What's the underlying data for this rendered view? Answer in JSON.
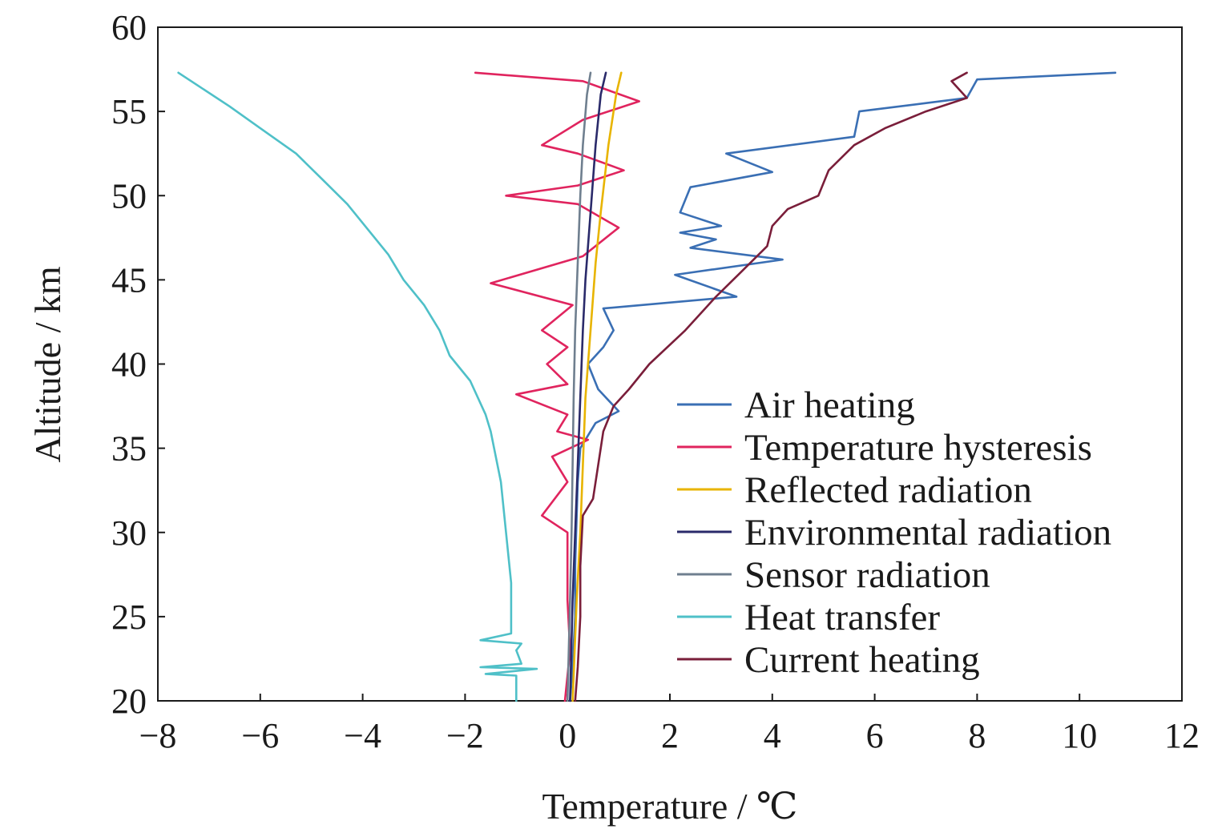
{
  "chart_data": {
    "type": "line",
    "xlabel": "Temperature / ℃",
    "ylabel": "Altitude / km",
    "xlim": [
      -8,
      12
    ],
    "ylim": [
      20,
      60
    ],
    "xticks": [
      -8,
      -6,
      -4,
      -2,
      0,
      2,
      4,
      6,
      8,
      10,
      12
    ],
    "xtick_labels": [
      "−8",
      "−6",
      "−4",
      "−2",
      "0",
      "2",
      "4",
      "6",
      "8",
      "10",
      "12"
    ],
    "yticks": [
      20,
      25,
      30,
      35,
      40,
      45,
      50,
      55,
      60
    ],
    "ytick_labels": [
      "20",
      "25",
      "30",
      "35",
      "40",
      "45",
      "50",
      "55",
      "60"
    ],
    "grid": false,
    "legend_position": "lower-right",
    "series": [
      {
        "name": "Air heating",
        "color": "#3a6fb4",
        "points": [
          [
            0.05,
            20
          ],
          [
            0.1,
            22
          ],
          [
            0.15,
            25
          ],
          [
            0.15,
            28
          ],
          [
            0.18,
            31
          ],
          [
            0.2,
            33
          ],
          [
            0.25,
            35
          ],
          [
            0.55,
            36.5
          ],
          [
            1.0,
            37.2
          ],
          [
            0.6,
            38.5
          ],
          [
            0.4,
            40
          ],
          [
            0.7,
            41
          ],
          [
            0.9,
            42
          ],
          [
            0.7,
            43.3
          ],
          [
            3.3,
            44
          ],
          [
            2.1,
            45.3
          ],
          [
            4.2,
            46.2
          ],
          [
            2.4,
            46.9
          ],
          [
            2.9,
            47.4
          ],
          [
            2.2,
            47.8
          ],
          [
            3.0,
            48.2
          ],
          [
            2.2,
            49
          ],
          [
            2.4,
            50.5
          ],
          [
            4.0,
            51.4
          ],
          [
            3.1,
            52.5
          ],
          [
            5.6,
            53.5
          ],
          [
            5.7,
            55
          ],
          [
            7.8,
            55.8
          ],
          [
            8.0,
            56.9
          ],
          [
            10.7,
            57.3
          ]
        ]
      },
      {
        "name": "Temperature hysteresis",
        "color": "#e0245e",
        "points": [
          [
            -0.05,
            20
          ],
          [
            0.05,
            23
          ],
          [
            0.0,
            26
          ],
          [
            0.0,
            30
          ],
          [
            -0.5,
            31
          ],
          [
            0.0,
            33
          ],
          [
            -0.3,
            34.5
          ],
          [
            0.4,
            35.5
          ],
          [
            -0.2,
            36
          ],
          [
            0.0,
            37
          ],
          [
            -1.0,
            38.2
          ],
          [
            0.0,
            38.8
          ],
          [
            -0.4,
            40
          ],
          [
            0.0,
            41
          ],
          [
            -0.5,
            42
          ],
          [
            0.1,
            43.5
          ],
          [
            -1.5,
            44.8
          ],
          [
            0.3,
            46.4
          ],
          [
            1.0,
            48.1
          ],
          [
            0.2,
            49.5
          ],
          [
            -1.2,
            50
          ],
          [
            0.2,
            50.6
          ],
          [
            1.1,
            51.5
          ],
          [
            0.2,
            52.5
          ],
          [
            -0.5,
            53
          ],
          [
            0.3,
            54.5
          ],
          [
            1.4,
            55.6
          ],
          [
            0.3,
            56.8
          ],
          [
            -1.8,
            57.3
          ]
        ]
      },
      {
        "name": "Reflected radiation",
        "color": "#e8b400",
        "points": [
          [
            0.1,
            20
          ],
          [
            0.18,
            26
          ],
          [
            0.25,
            30
          ],
          [
            0.3,
            34
          ],
          [
            0.35,
            38
          ],
          [
            0.45,
            42
          ],
          [
            0.55,
            46
          ],
          [
            0.65,
            49
          ],
          [
            0.8,
            53
          ],
          [
            0.95,
            56
          ],
          [
            1.05,
            57.3
          ]
        ]
      },
      {
        "name": "Environmental radiation",
        "color": "#2a2a6a",
        "points": [
          [
            0.05,
            20
          ],
          [
            0.1,
            26
          ],
          [
            0.15,
            30
          ],
          [
            0.2,
            34
          ],
          [
            0.25,
            38
          ],
          [
            0.3,
            42
          ],
          [
            0.35,
            45
          ],
          [
            0.45,
            49
          ],
          [
            0.55,
            53
          ],
          [
            0.65,
            56
          ],
          [
            0.75,
            57.3
          ]
        ]
      },
      {
        "name": "Sensor radiation",
        "color": "#6f7f8f",
        "points": [
          [
            0.0,
            20
          ],
          [
            0.05,
            26
          ],
          [
            0.08,
            30
          ],
          [
            0.1,
            34
          ],
          [
            0.12,
            38
          ],
          [
            0.15,
            42
          ],
          [
            0.2,
            46
          ],
          [
            0.25,
            50
          ],
          [
            0.3,
            53
          ],
          [
            0.38,
            56
          ],
          [
            0.45,
            57.3
          ]
        ]
      },
      {
        "name": "Heat transfer",
        "color": "#4fc0c8",
        "points": [
          [
            -1.0,
            20
          ],
          [
            -1.0,
            21.5
          ],
          [
            -1.6,
            21.6
          ],
          [
            -0.6,
            21.9
          ],
          [
            -1.7,
            22
          ],
          [
            -0.9,
            22.2
          ],
          [
            -1.0,
            23
          ],
          [
            -0.9,
            23.4
          ],
          [
            -1.7,
            23.6
          ],
          [
            -1.1,
            24
          ],
          [
            -1.1,
            27
          ],
          [
            -1.2,
            30
          ],
          [
            -1.3,
            33
          ],
          [
            -1.5,
            36
          ],
          [
            -1.6,
            37
          ],
          [
            -1.9,
            39
          ],
          [
            -2.3,
            40.5
          ],
          [
            -2.5,
            42
          ],
          [
            -2.8,
            43.5
          ],
          [
            -3.2,
            45
          ],
          [
            -3.5,
            46.5
          ],
          [
            -3.9,
            48
          ],
          [
            -4.3,
            49.5
          ],
          [
            -4.8,
            51
          ],
          [
            -5.3,
            52.5
          ],
          [
            -6.0,
            54
          ],
          [
            -6.6,
            55.3
          ],
          [
            -7.2,
            56.5
          ],
          [
            -7.6,
            57.3
          ]
        ]
      },
      {
        "name": "Current heating",
        "color": "#7a1e3a",
        "points": [
          [
            0.15,
            20
          ],
          [
            0.2,
            22
          ],
          [
            0.25,
            25
          ],
          [
            0.25,
            28
          ],
          [
            0.3,
            31
          ],
          [
            0.5,
            32
          ],
          [
            0.6,
            34
          ],
          [
            0.7,
            36
          ],
          [
            0.9,
            37.5
          ],
          [
            1.2,
            38.5
          ],
          [
            1.6,
            40
          ],
          [
            2.3,
            42
          ],
          [
            2.9,
            44
          ],
          [
            3.4,
            45.5
          ],
          [
            3.9,
            47
          ],
          [
            4.0,
            48.2
          ],
          [
            4.3,
            49.2
          ],
          [
            4.9,
            50
          ],
          [
            5.1,
            51.5
          ],
          [
            5.6,
            53
          ],
          [
            6.2,
            54
          ],
          [
            7.0,
            55
          ],
          [
            7.8,
            55.8
          ],
          [
            7.5,
            56.8
          ],
          [
            7.8,
            57.3
          ]
        ]
      }
    ]
  }
}
